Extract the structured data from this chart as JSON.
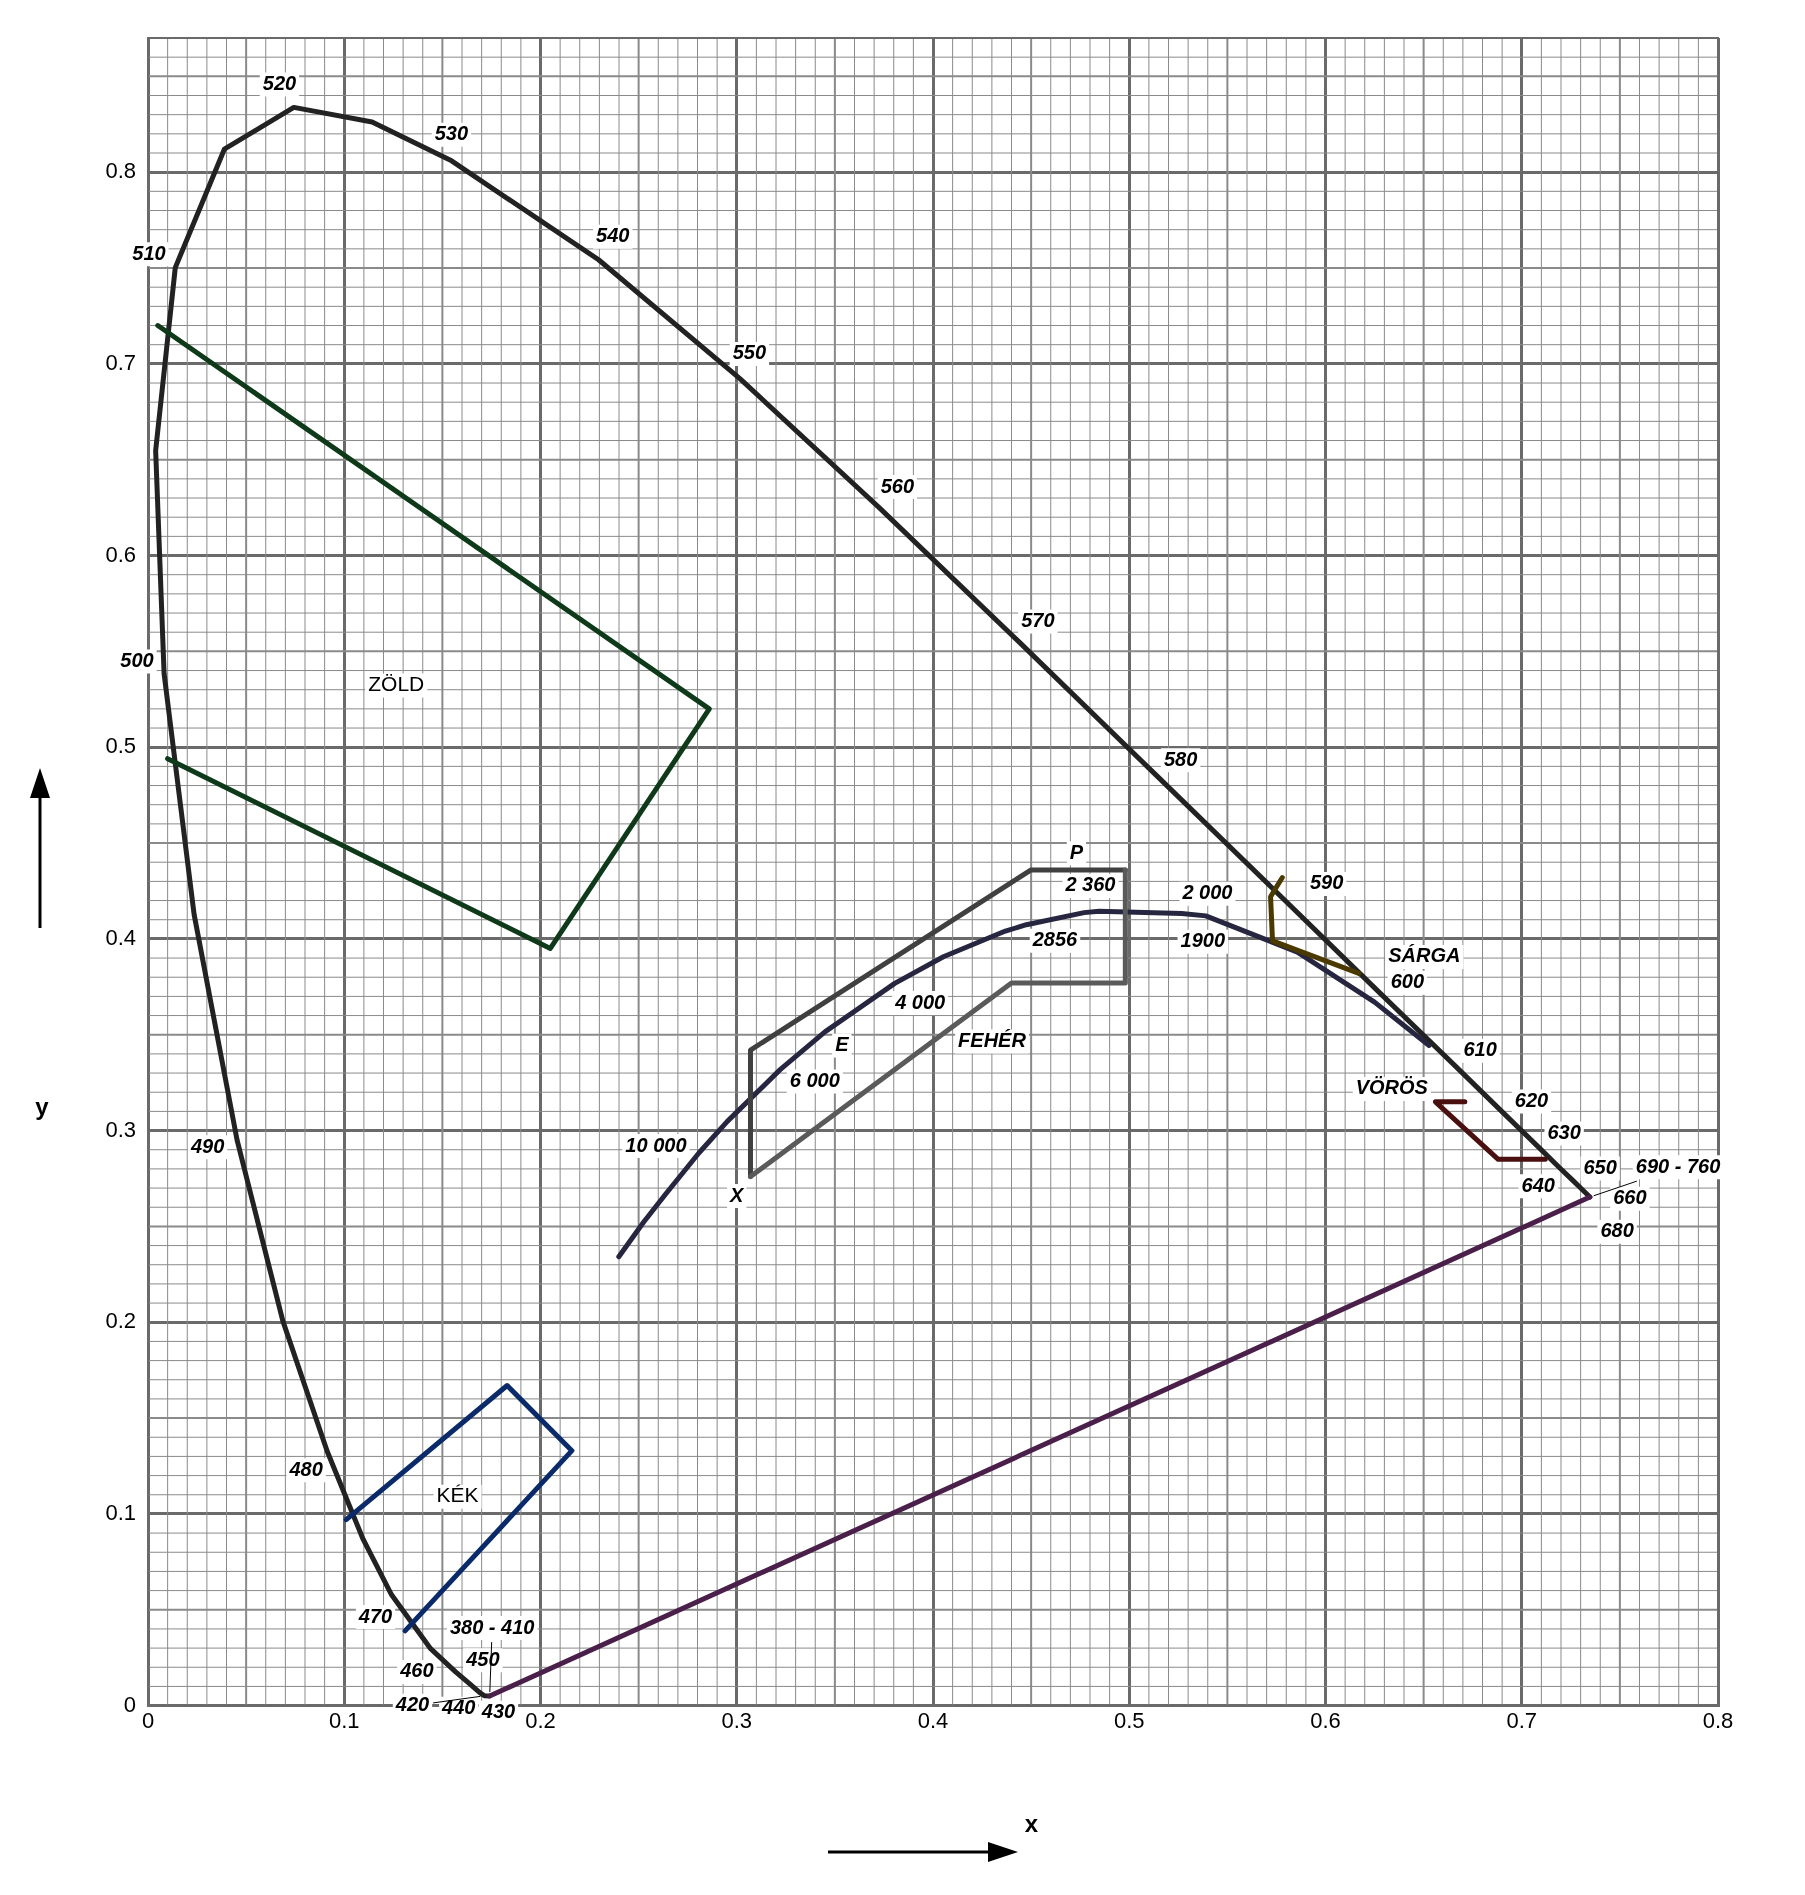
{
  "chart_data": {
    "type": "line",
    "xlabel": "x",
    "ylabel": "y",
    "xlim": [
      0,
      0.8
    ],
    "ylim": [
      0,
      0.87
    ],
    "xticks": [
      0,
      0.1,
      0.2,
      0.3,
      0.4,
      0.5,
      0.6,
      0.7,
      0.8
    ],
    "yticks": [
      0,
      0.1,
      0.2,
      0.3,
      0.4,
      0.5,
      0.6,
      0.7,
      0.8
    ],
    "grid": true,
    "marker": "none",
    "line_style": "solid",
    "series": [
      {
        "type": "line",
        "color": "#222222",
        "x": [
          0.1741,
          0.1714,
          0.1689,
          0.1644,
          0.1566,
          0.144,
          0.1241,
          0.1096,
          0.0913,
          0.0687,
          0.0454,
          0.0235,
          0.0082,
          0.0039,
          0.0139,
          0.0389,
          0.0743,
          0.1142,
          0.1547,
          0.2296,
          0.3016,
          0.3731,
          0.4441,
          0.5125,
          0.5752,
          0.627,
          0.6658,
          0.6915,
          0.7079,
          0.719,
          0.726,
          0.73,
          0.7334,
          0.7347
        ],
        "values": [
          0.005,
          0.0051,
          0.0069,
          0.0109,
          0.0177,
          0.0297,
          0.0578,
          0.0868,
          0.1327,
          0.2007,
          0.295,
          0.4127,
          0.5384,
          0.6548,
          0.7502,
          0.812,
          0.8338,
          0.8262,
          0.8059,
          0.7543,
          0.6923,
          0.6245,
          0.5547,
          0.4866,
          0.4242,
          0.3725,
          0.334,
          0.3083,
          0.292,
          0.2809,
          0.274,
          0.27,
          0.2666,
          0.2653
        ]
      },
      {
        "type": "line",
        "color": "#262640",
        "x": [
          0.2399,
          0.2525,
          0.2637,
          0.2807,
          0.2952,
          0.3221,
          0.3451,
          0.3805,
          0.4053,
          0.4369,
          0.4476,
          0.477,
          0.4846,
          0.5267,
          0.539,
          0.5857,
          0.625,
          0.6528
        ],
        "values": [
          0.2342,
          0.2522,
          0.2668,
          0.2883,
          0.3048,
          0.3318,
          0.3516,
          0.3768,
          0.3907,
          0.4041,
          0.4074,
          0.4137,
          0.4144,
          0.4133,
          0.412,
          0.3931,
          0.367,
          0.3444
        ]
      },
      {
        "type": "line",
        "name": "ZÖLD",
        "color": "#0f3a1a",
        "x": [
          0.005,
          0.286,
          0.205,
          0.01
        ],
        "values": [
          0.72,
          0.52,
          0.395,
          0.494
        ]
      },
      {
        "type": "line",
        "name": "KÉK",
        "color": "#0a2a6a",
        "x": [
          0.101,
          0.183,
          0.216,
          0.131
        ],
        "values": [
          0.097,
          0.167,
          0.133,
          0.039
        ]
      },
      {
        "type": "line",
        "color": "#404040",
        "x": [
          0.307,
          0.307,
          0.45,
          0.498
        ],
        "values": [
          0.276,
          0.342,
          0.436,
          0.436
        ]
      },
      {
        "type": "line",
        "color": "#5a5a5a",
        "x": [
          0.498,
          0.498,
          0.44,
          0.307
        ],
        "values": [
          0.436,
          0.377,
          0.377,
          0.276
        ]
      },
      {
        "type": "line",
        "color": "#4a3a00",
        "x": [
          0.578,
          0.572,
          0.573,
          0.617
        ],
        "values": [
          0.432,
          0.422,
          0.399,
          0.382
        ]
      },
      {
        "type": "line",
        "color": "#4a1010",
        "x": [
          0.671,
          0.656,
          0.688,
          0.712
        ],
        "values": [
          0.315,
          0.315,
          0.285,
          0.285
        ]
      },
      {
        "type": "line",
        "color": "#4a204a",
        "x": [
          0.1741,
          0.7347
        ],
        "values": [
          0.005,
          0.2653
        ]
      }
    ],
    "annotations": [
      {
        "text": "520",
        "x": 0.0743,
        "y": 0.8338
      },
      {
        "text": "530",
        "x": 0.1547,
        "y": 0.8059
      },
      {
        "text": "540",
        "x": 0.2296,
        "y": 0.7543
      },
      {
        "text": "550",
        "x": 0.3016,
        "y": 0.6923
      },
      {
        "text": "510",
        "x": 0.0139,
        "y": 0.7502
      },
      {
        "text": "560",
        "x": 0.3731,
        "y": 0.6245
      },
      {
        "text": "570",
        "x": 0.4441,
        "y": 0.5547
      },
      {
        "text": "500",
        "x": 0.0082,
        "y": 0.5384
      },
      {
        "text": "580",
        "x": 0.5125,
        "y": 0.4866
      },
      {
        "text": "590",
        "x": 0.5752,
        "y": 0.4242
      },
      {
        "text": "600",
        "x": 0.627,
        "y": 0.3725
      },
      {
        "text": "610",
        "x": 0.6658,
        "y": 0.334
      },
      {
        "text": "620",
        "x": 0.6915,
        "y": 0.3083
      },
      {
        "text": "630",
        "x": 0.7079,
        "y": 0.292
      },
      {
        "text": "640",
        "x": 0.719,
        "y": 0.2809
      },
      {
        "text": "650",
        "x": 0.726,
        "y": 0.274
      },
      {
        "text": "660",
        "x": 0.73,
        "y": 0.27
      },
      {
        "text": "680",
        "x": 0.7334,
        "y": 0.2666
      },
      {
        "text": "690 - 760",
        "x": 0.7347,
        "y": 0.2653
      },
      {
        "text": "490",
        "x": 0.0454,
        "y": 0.295
      },
      {
        "text": "480",
        "x": 0.0913,
        "y": 0.1327
      },
      {
        "text": "470",
        "x": 0.1241,
        "y": 0.0578
      },
      {
        "text": "460",
        "x": 0.144,
        "y": 0.0297
      },
      {
        "text": "450",
        "x": 0.1566,
        "y": 0.0177
      },
      {
        "text": "440",
        "x": 0.1644,
        "y": 0.0109
      },
      {
        "text": "430",
        "x": 0.1689,
        "y": 0.0069
      },
      {
        "text": "420",
        "x": 0.1714,
        "y": 0.0051
      },
      {
        "text": "380 - 410",
        "x": 0.1741,
        "y": 0.005
      },
      {
        "text": "10 000",
        "x": 0.2807,
        "y": 0.2883
      },
      {
        "text": "6 000",
        "x": 0.3221,
        "y": 0.3318
      },
      {
        "text": "4 000",
        "x": 0.3805,
        "y": 0.3768
      },
      {
        "text": "2856",
        "x": 0.4476,
        "y": 0.4074
      },
      {
        "text": "P",
        "x": 0.465,
        "y": 0.436
      },
      {
        "text": "2 360",
        "x": 0.4846,
        "y": 0.4144
      },
      {
        "text": "2 000",
        "x": 0.5267,
        "y": 0.4133
      },
      {
        "text": "1900",
        "x": 0.539,
        "y": 0.412
      },
      {
        "text": "E",
        "x": 0.333,
        "y": 0.3412
      },
      {
        "text": "X",
        "x": 0.307,
        "y": 0.276
      },
      {
        "text": "SÁRGA",
        "x": 0.617,
        "y": 0.382
      },
      {
        "text": "VÖRÖS",
        "x": 0.656,
        "y": 0.315
      },
      {
        "text": "FEHÉR",
        "x": 0.41,
        "y": 0.3542
      }
    ]
  }
}
